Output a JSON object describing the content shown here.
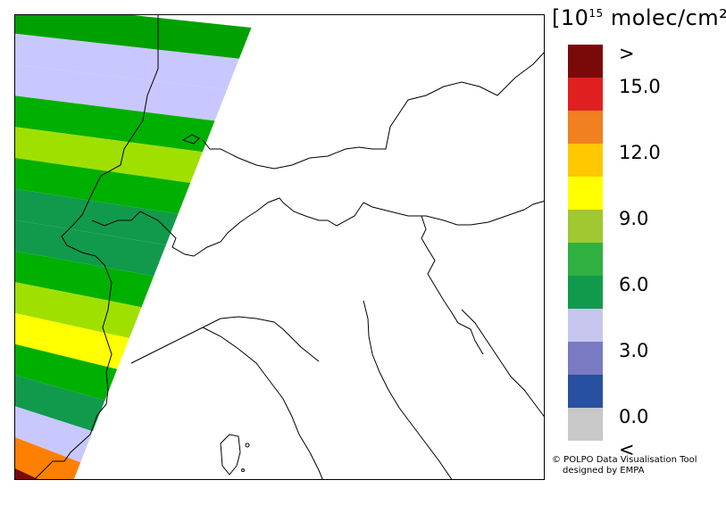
{
  "legend": {
    "title_prefix": "[10",
    "title_sup": "15",
    "title_suffix": " molec/cm²]",
    "classes": [
      {
        "color": "#7a0a0a",
        "label": ">"
      },
      {
        "color": "#e02020",
        "label": "15.0"
      },
      {
        "color": "#f08020",
        "label": ""
      },
      {
        "color": "#ffc800",
        "label": "12.0"
      },
      {
        "color": "#ffff00",
        "label": ""
      },
      {
        "color": "#a0c830",
        "label": "9.0"
      },
      {
        "color": "#30b040",
        "label": ""
      },
      {
        "color": "#119a4c",
        "label": "6.0"
      },
      {
        "color": "#c6c6ee",
        "label": ""
      },
      {
        "color": "#7a7ac2",
        "label": "3.0"
      },
      {
        "color": "#2850a0",
        "label": ""
      },
      {
        "color": "#c8c8c8",
        "label": "0.0"
      },
      {
        "color": "",
        "label": "<"
      }
    ]
  },
  "credit": {
    "line1": "© POLPO Data Visualisation Tool",
    "line2": "designed by EMPA"
  },
  "swath_bands": [
    "#00a000",
    "#c8c8ff",
    "#c8c8ff",
    "#00b000",
    "#a0e000",
    "#00b000",
    "#119a4c",
    "#119a4c",
    "#00b000",
    "#a0e000",
    "#ffff00",
    "#00b000",
    "#119a4c",
    "#c8c8ff",
    "#ff8000",
    "#7a0a0a"
  ]
}
